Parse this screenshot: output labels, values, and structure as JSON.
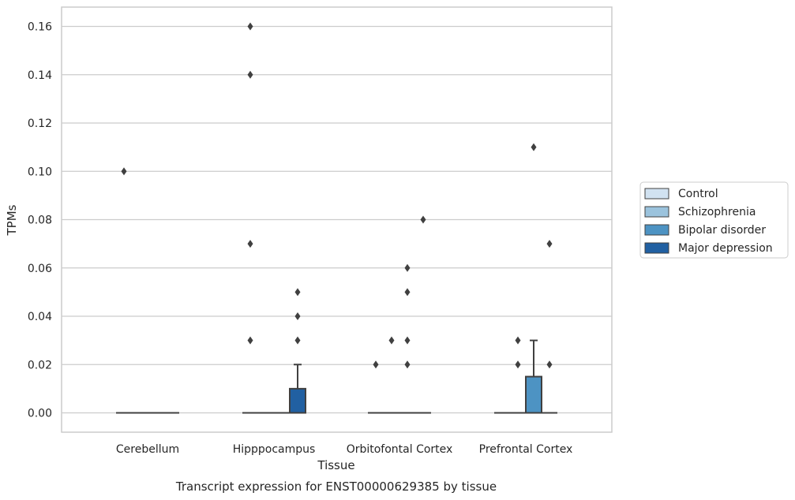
{
  "colors": {
    "Control": "#d1e2f1",
    "Schizophrenia": "#9bc3dd",
    "Bipolar disorder": "#4d93c3",
    "Major depression": "#2160a2",
    "grid": "#cccccc",
    "spine": "#cccccc",
    "line": "#404040",
    "outlier": "#404040"
  },
  "chart_data": {
    "type": "box",
    "xlabel": "Tissue",
    "ylabel": "TPMs",
    "caption": "Transcript expression for ENST00000629385 by tissue",
    "categories": [
      "Cerebellum",
      "Hipppocampus",
      "Orbitofontal Cortex",
      "Prefrontal Cortex"
    ],
    "ylim": [
      -0.008,
      0.168
    ],
    "yticks": [
      0.0,
      0.02,
      0.04,
      0.06,
      0.08,
      0.1,
      0.12,
      0.14,
      0.16
    ],
    "ytick_labels": [
      "0.00",
      "0.02",
      "0.04",
      "0.06",
      "0.08",
      "0.10",
      "0.12",
      "0.14",
      "0.16"
    ],
    "grid": "horizontal",
    "legend_position": "right",
    "series": [
      {
        "name": "Control",
        "boxes": [
          {
            "q1": 0,
            "median": 0,
            "q3": 0,
            "whislo": 0,
            "whishi": 0,
            "fliers": [
              0.1
            ]
          },
          {
            "q1": 0,
            "median": 0,
            "q3": 0,
            "whislo": 0,
            "whishi": 0,
            "fliers": [
              0.03,
              0.07,
              0.14,
              0.16
            ]
          },
          {
            "q1": 0,
            "median": 0,
            "q3": 0,
            "whislo": 0,
            "whishi": 0,
            "fliers": [
              0.02
            ]
          },
          {
            "q1": 0,
            "median": 0,
            "q3": 0,
            "whislo": 0,
            "whishi": 0,
            "fliers": []
          }
        ]
      },
      {
        "name": "Schizophrenia",
        "boxes": [
          {
            "q1": 0,
            "median": 0,
            "q3": 0,
            "whislo": 0,
            "whishi": 0,
            "fliers": []
          },
          {
            "q1": 0,
            "median": 0,
            "q3": 0,
            "whislo": 0,
            "whishi": 0,
            "fliers": []
          },
          {
            "q1": 0,
            "median": 0,
            "q3": 0,
            "whislo": 0,
            "whishi": 0,
            "fliers": [
              0.03
            ]
          },
          {
            "q1": 0,
            "median": 0,
            "q3": 0,
            "whislo": 0,
            "whishi": 0,
            "fliers": [
              0.02,
              0.03
            ]
          }
        ]
      },
      {
        "name": "Bipolar disorder",
        "boxes": [
          {
            "q1": 0,
            "median": 0,
            "q3": 0,
            "whislo": 0,
            "whishi": 0,
            "fliers": []
          },
          {
            "q1": 0,
            "median": 0,
            "q3": 0,
            "whislo": 0,
            "whishi": 0,
            "fliers": []
          },
          {
            "q1": 0,
            "median": 0,
            "q3": 0,
            "whislo": 0,
            "whishi": 0,
            "fliers": [
              0.02,
              0.03,
              0.05,
              0.06
            ]
          },
          {
            "q1": 0,
            "median": 0,
            "q3": 0.015,
            "whislo": 0,
            "whishi": 0.03,
            "fliers": [
              0.11
            ]
          }
        ]
      },
      {
        "name": "Major depression",
        "boxes": [
          {
            "q1": 0,
            "median": 0,
            "q3": 0,
            "whislo": 0,
            "whishi": 0,
            "fliers": []
          },
          {
            "q1": 0,
            "median": 0,
            "q3": 0.01,
            "whislo": 0,
            "whishi": 0.02,
            "fliers": [
              0.03,
              0.04,
              0.05
            ]
          },
          {
            "q1": 0,
            "median": 0,
            "q3": 0,
            "whislo": 0,
            "whishi": 0,
            "fliers": [
              0.08
            ]
          },
          {
            "q1": 0,
            "median": 0,
            "q3": 0,
            "whislo": 0,
            "whishi": 0,
            "fliers": [
              0.02,
              0.07
            ]
          }
        ]
      }
    ]
  }
}
